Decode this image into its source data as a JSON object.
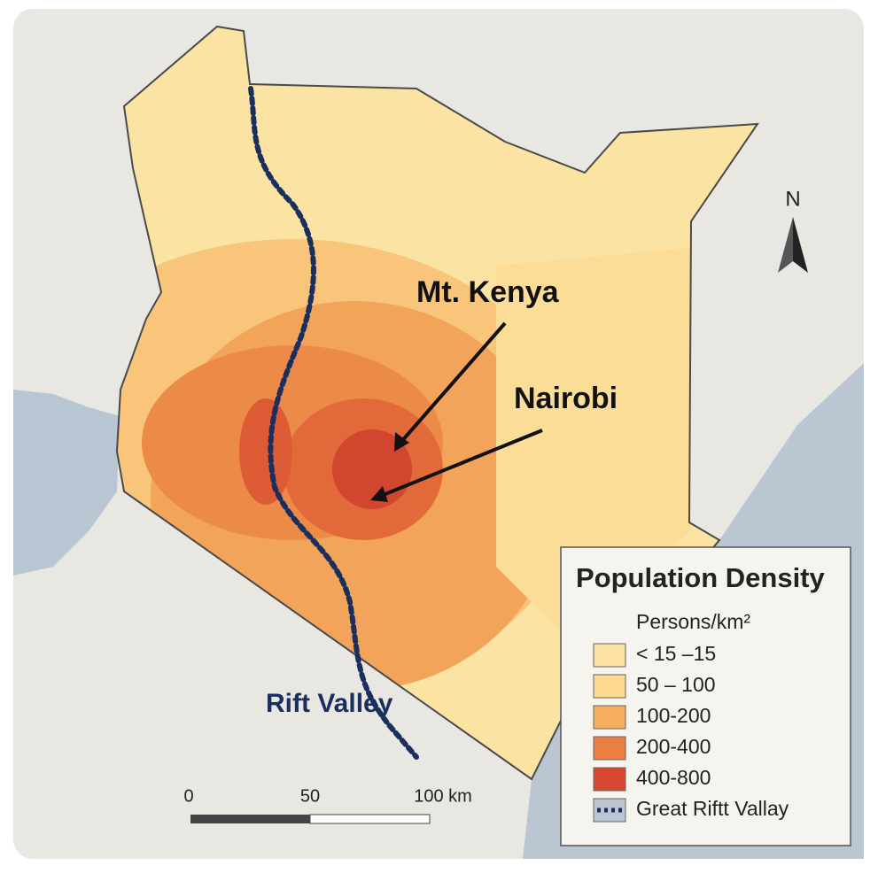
{
  "map_labels": {
    "mt_kenya": "Mt. Kenya",
    "nairobi": "Nairobi",
    "rift_valley": "Rift Valley",
    "north": "N"
  },
  "legend": {
    "title": "Population Density",
    "unit": "Persons/km²",
    "items": [
      {
        "label": "< 15 –15",
        "color": "#fbe2a2"
      },
      {
        "label": "50 – 100",
        "color": "#fbd98e"
      },
      {
        "label": "100-200",
        "color": "#f4ae5c"
      },
      {
        "label": "200-400",
        "color": "#eb7f43"
      },
      {
        "label": "400-800",
        "color": "#d8472f"
      },
      {
        "label": "Great Riftt Vallay",
        "color": "#1b2f5e"
      }
    ]
  },
  "scale_bar": {
    "labels": [
      "0",
      "50",
      "100 km"
    ]
  }
}
